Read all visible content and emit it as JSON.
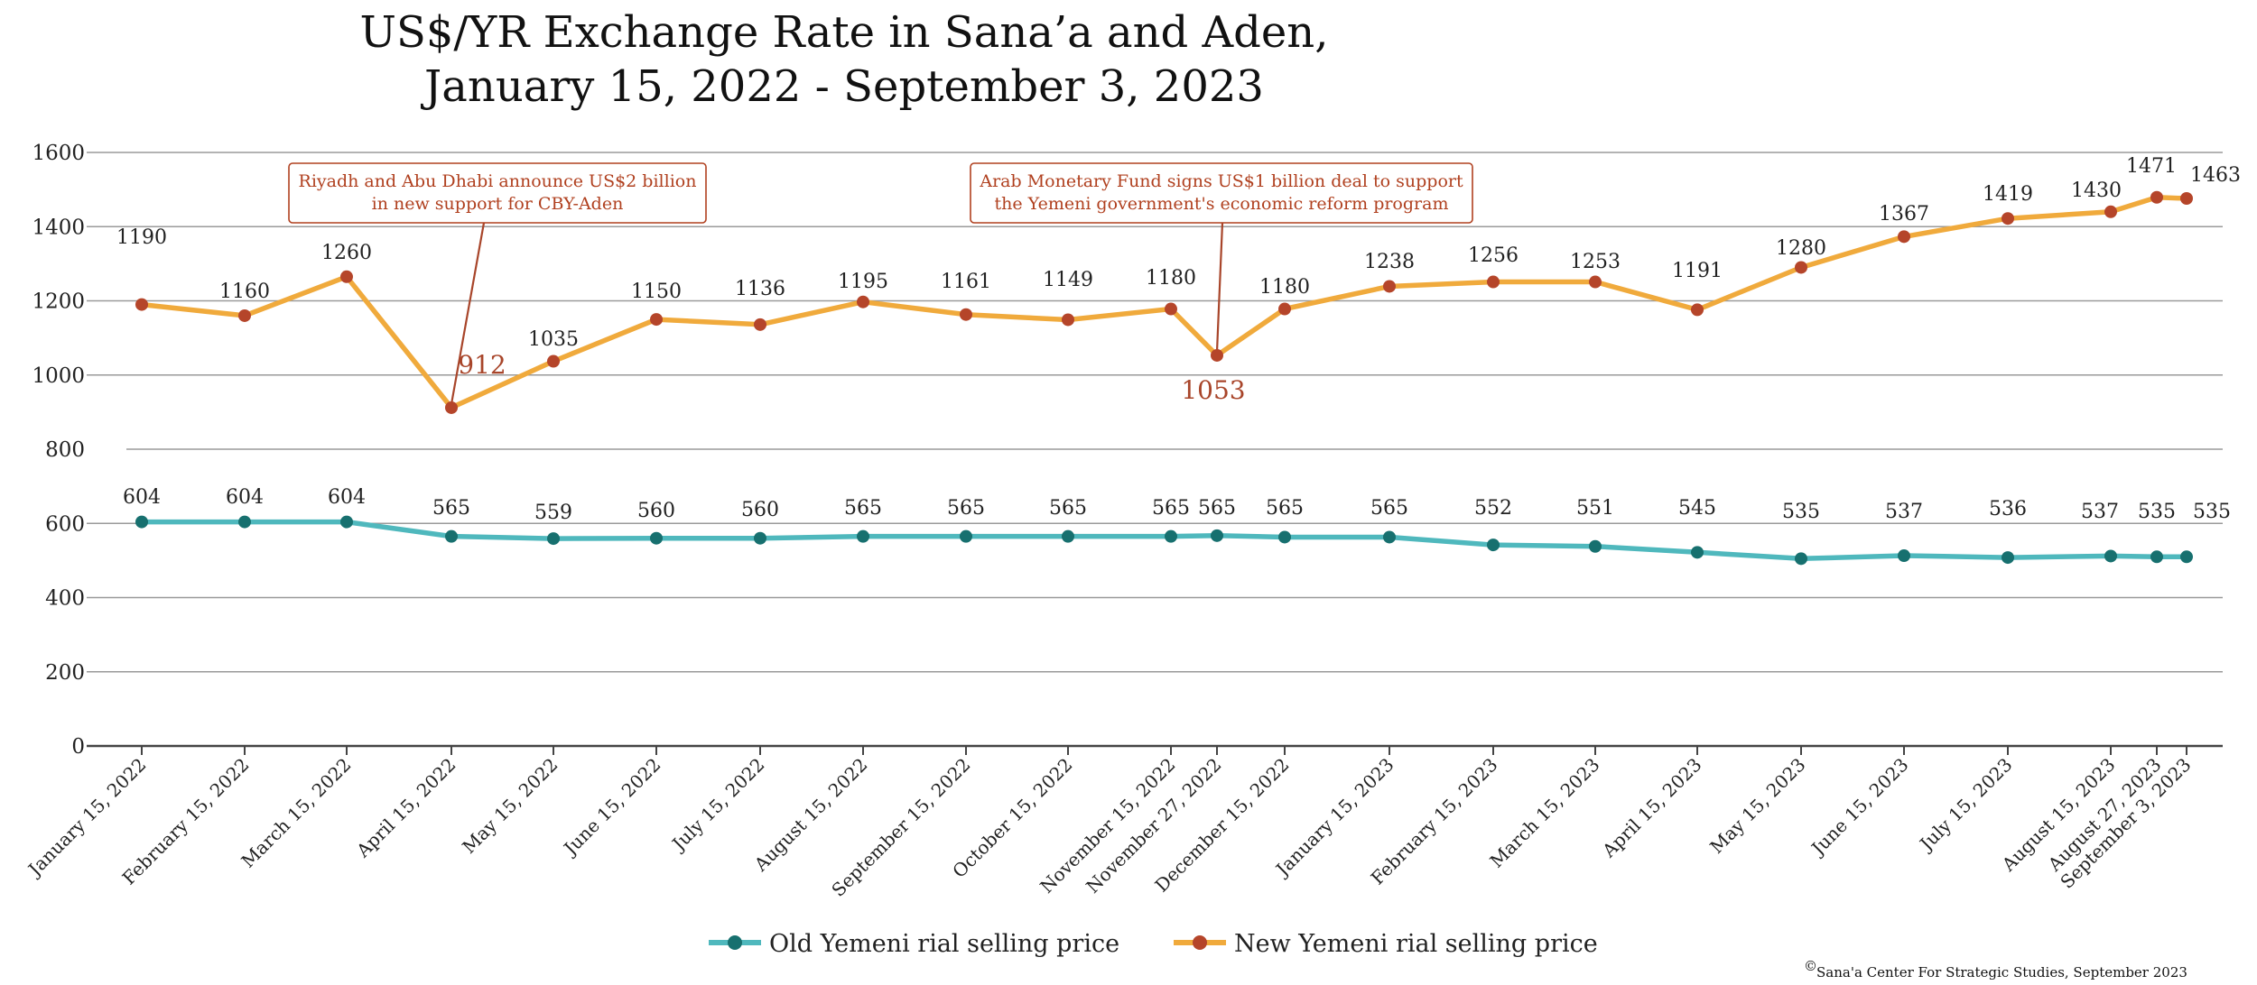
{
  "chart_data": {
    "type": "line",
    "title_lines": [
      "US$/YR Exchange Rate in Sana’a and Aden,",
      "January 15, 2022 - September 3, 2023"
    ],
    "ylim": [
      0,
      1600
    ],
    "yticks": [
      0,
      200,
      400,
      600,
      800,
      1000,
      1200,
      1400,
      1600
    ],
    "grid": true,
    "legend_position": "bottom-center",
    "categories": [
      "January 15, 2022",
      "February 15, 2022",
      "March 15, 2022",
      "April 15, 2022",
      "May 15, 2022",
      "June 15, 2022",
      "July 15, 2022",
      "August 15, 2022",
      "September 15, 2022",
      "October 15, 2022",
      "November 15, 2022",
      "November 27, 2022",
      "December 15, 2022",
      "January 15, 2023",
      "February 15, 2023",
      "March 15, 2023",
      "April 15, 2023",
      "May 15, 2023",
      "June 15, 2023",
      "July 15, 2023",
      "August 15, 2023",
      "August 27, 2023",
      "September 3, 2023"
    ],
    "series": [
      {
        "name": "Old Yemeni rial selling price",
        "line_color": "#4fb8bd",
        "marker_color": "#17706f",
        "values": [
          604,
          604,
          604,
          565,
          559,
          560,
          560,
          565,
          565,
          565,
          565,
          565,
          565,
          565,
          552,
          551,
          545,
          535,
          537,
          536,
          537,
          535,
          535
        ],
        "plotted_values": [
          604,
          604,
          604,
          565,
          559,
          560,
          560,
          565,
          565,
          565,
          565,
          567,
          563,
          563,
          542,
          538,
          522,
          505,
          513,
          508,
          512,
          510,
          510
        ]
      },
      {
        "name": "New Yemeni rial selling price",
        "line_color": "#f0aa3c",
        "marker_color": "#b5452a",
        "values": [
          1190,
          1160,
          1260,
          912,
          1035,
          1150,
          1136,
          1195,
          1161,
          1149,
          1180,
          1053,
          1180,
          1238,
          1256,
          1253,
          1191,
          1280,
          1367,
          1419,
          1430,
          1471,
          1463
        ],
        "plotted_values": [
          1190,
          1160,
          1265,
          912,
          1037,
          1150,
          1136,
          1197,
          1163,
          1149,
          1178,
          1053,
          1178,
          1239,
          1251,
          1251,
          1176,
          1290,
          1373,
          1422,
          1440,
          1479,
          1476
        ]
      }
    ],
    "annotations": [
      {
        "text_lines": [
          "Riyadh and Abu Dhabi announce US$2 billion",
          "in new support for CBY-Aden"
        ],
        "target_index": 3
      },
      {
        "text_lines": [
          "Arab Monetary Fund signs US$1 billion deal to support",
          "the Yemeni government's economic reform program"
        ],
        "target_index": 11
      }
    ],
    "credit": "Sana'a Center For Strategic Studies, September 2023",
    "credit_symbol": "©"
  }
}
